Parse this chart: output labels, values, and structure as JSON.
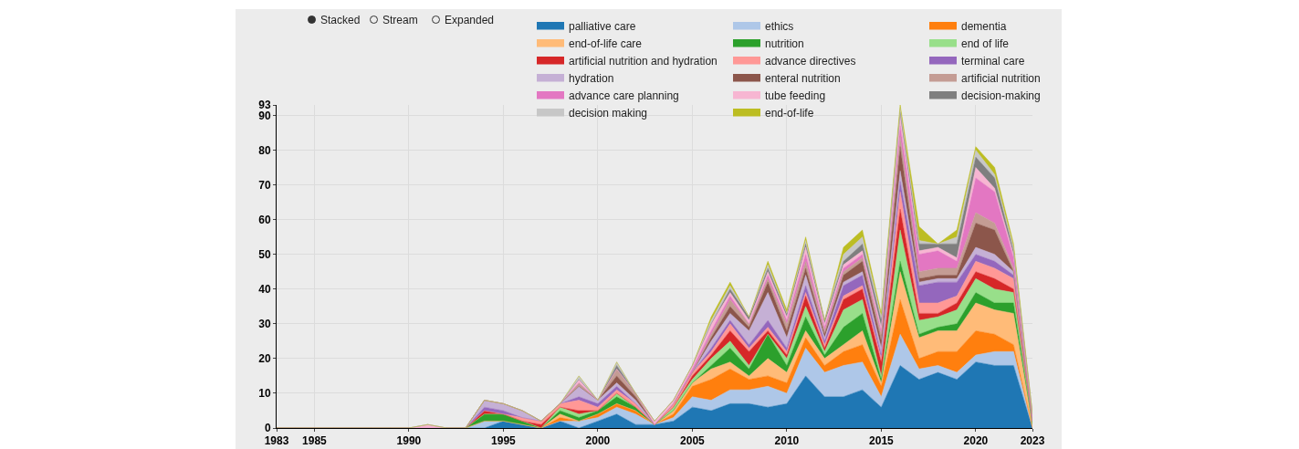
{
  "chart_data": {
    "type": "area",
    "stacked": true,
    "annotations": [
      "Stacked",
      "Stream",
      "Expanded"
    ],
    "x": [
      1983,
      1984,
      1985,
      1986,
      1987,
      1988,
      1989,
      1990,
      1991,
      1992,
      1993,
      1994,
      1995,
      1996,
      1997,
      1998,
      1999,
      2000,
      2001,
      2002,
      2003,
      2004,
      2005,
      2006,
      2007,
      2008,
      2009,
      2010,
      2011,
      2012,
      2013,
      2014,
      2015,
      2016,
      2017,
      2018,
      2019,
      2020,
      2021,
      2022,
      2023
    ],
    "xlim": [
      1983,
      2023
    ],
    "xticks": [
      1983,
      1985,
      1990,
      1995,
      2000,
      2005,
      2010,
      2015,
      2020,
      2023
    ],
    "ylim": [
      0,
      93
    ],
    "yticks": [
      0,
      10,
      20,
      30,
      40,
      50,
      60,
      70,
      80,
      90,
      93
    ],
    "grid": true,
    "legend": "top",
    "marker": "none",
    "series": [
      {
        "name": "palliative care",
        "color": "#1f77b4",
        "values": [
          0,
          0,
          0,
          0,
          0,
          0,
          0,
          0,
          0,
          0,
          0,
          0,
          2,
          1,
          0,
          2,
          0,
          2,
          4,
          1,
          1,
          2,
          6,
          5,
          7,
          7,
          6,
          7,
          15,
          9,
          9,
          11,
          6,
          18,
          14,
          16,
          14,
          19,
          18,
          18,
          0
        ]
      },
      {
        "name": "ethics",
        "color": "#aec7e8",
        "values": [
          0,
          0,
          0,
          0,
          0,
          0,
          0,
          0,
          0,
          0,
          0,
          2,
          0,
          0,
          0,
          0,
          2,
          1,
          2,
          3,
          0,
          1,
          3,
          3,
          4,
          4,
          6,
          3,
          8,
          7,
          9,
          8,
          3,
          9,
          3,
          2,
          2,
          2,
          4,
          4,
          0
        ]
      },
      {
        "name": "dementia",
        "color": "#ff7f0e",
        "values": [
          0,
          0,
          0,
          0,
          0,
          0,
          0,
          0,
          0,
          0,
          0,
          0,
          0,
          0,
          0,
          1,
          0,
          1,
          1,
          1,
          0,
          1,
          3,
          6,
          6,
          3,
          3,
          3,
          3,
          2,
          4,
          5,
          3,
          10,
          3,
          4,
          6,
          7,
          5,
          2,
          0
        ]
      },
      {
        "name": "end-of-life care",
        "color": "#ffbb78",
        "values": [
          0,
          0,
          0,
          0,
          0,
          0,
          0,
          0,
          0,
          0,
          0,
          0,
          0,
          0,
          0,
          1,
          0,
          0,
          0,
          0,
          0,
          1,
          1,
          3,
          2,
          1,
          5,
          3,
          2,
          2,
          2,
          4,
          1,
          8,
          6,
          6,
          6,
          8,
          7,
          9,
          1
        ]
      },
      {
        "name": "nutrition",
        "color": "#2ca02c",
        "values": [
          0,
          0,
          0,
          0,
          0,
          0,
          0,
          0,
          0,
          0,
          0,
          2,
          2,
          1,
          0,
          1,
          1,
          1,
          2,
          1,
          0,
          0,
          0,
          1,
          4,
          2,
          7,
          2,
          4,
          1,
          5,
          5,
          1,
          3,
          1,
          1,
          2,
          3,
          2,
          3,
          0
        ]
      },
      {
        "name": "end of life",
        "color": "#98df8a",
        "values": [
          0,
          0,
          0,
          0,
          0,
          0,
          0,
          0,
          0,
          0,
          0,
          0,
          0,
          0,
          0,
          1,
          1,
          0,
          1,
          0,
          0,
          1,
          1,
          2,
          2,
          1,
          0,
          2,
          3,
          1,
          5,
          4,
          1,
          9,
          4,
          3,
          4,
          4,
          4,
          3,
          1
        ]
      },
      {
        "name": "artificial nutrition and hydration",
        "color": "#d62728",
        "values": [
          0,
          0,
          0,
          0,
          0,
          0,
          0,
          0,
          0,
          0,
          0,
          1,
          0,
          0,
          1,
          0,
          1,
          0,
          0,
          0,
          0,
          0,
          1,
          1,
          3,
          4,
          1,
          1,
          3,
          1,
          3,
          3,
          4,
          6,
          2,
          1,
          2,
          2,
          3,
          1,
          0
        ]
      },
      {
        "name": "advance directives",
        "color": "#ff9896",
        "values": [
          0,
          0,
          0,
          0,
          0,
          0,
          0,
          0,
          0,
          0,
          0,
          0,
          0,
          1,
          1,
          1,
          3,
          1,
          1,
          1,
          0,
          1,
          1,
          1,
          2,
          1,
          1,
          1,
          1,
          1,
          1,
          1,
          1,
          5,
          3,
          3,
          2,
          3,
          3,
          3,
          0
        ]
      },
      {
        "name": "terminal care",
        "color": "#9467bd",
        "values": [
          0,
          0,
          0,
          0,
          0,
          0,
          0,
          0,
          0,
          0,
          0,
          1,
          1,
          0,
          0,
          0,
          1,
          1,
          1,
          0,
          0,
          0,
          0,
          1,
          1,
          1,
          2,
          1,
          2,
          1,
          3,
          3,
          1,
          3,
          5,
          6,
          4,
          2,
          2,
          1,
          0
        ]
      },
      {
        "name": "hydration",
        "color": "#c5b0d5",
        "values": [
          0,
          0,
          0,
          0,
          0,
          0,
          0,
          0,
          0,
          0,
          0,
          2,
          2,
          2,
          0,
          0,
          3,
          1,
          1,
          1,
          0,
          0,
          0,
          2,
          2,
          4,
          8,
          3,
          3,
          1,
          1,
          1,
          2,
          3,
          1,
          1,
          1,
          2,
          2,
          1,
          0
        ]
      },
      {
        "name": "enteral nutrition",
        "color": "#8c564b",
        "values": [
          0,
          0,
          0,
          0,
          0,
          0,
          0,
          0,
          0,
          0,
          0,
          0,
          0,
          0,
          0,
          0,
          0,
          0,
          2,
          1,
          0,
          0,
          0,
          1,
          2,
          1,
          3,
          2,
          2,
          1,
          2,
          3,
          2,
          7,
          1,
          1,
          1,
          7,
          7,
          0,
          0
        ]
      },
      {
        "name": "artificial nutrition",
        "color": "#c49c94",
        "values": [
          0,
          0,
          0,
          0,
          0,
          0,
          0,
          0,
          0,
          0,
          0,
          0,
          0,
          0,
          0,
          0,
          1,
          0,
          2,
          1,
          0,
          0,
          0,
          1,
          2,
          1,
          1,
          2,
          2,
          1,
          1,
          1,
          2,
          3,
          2,
          2,
          2,
          3,
          2,
          1,
          0
        ]
      },
      {
        "name": "advance care planning",
        "color": "#e377c2",
        "values": [
          0,
          0,
          0,
          0,
          0,
          0,
          0,
          0,
          0,
          0,
          0,
          0,
          0,
          0,
          0,
          0,
          0,
          0,
          0,
          0,
          0,
          0,
          1,
          1,
          1,
          0,
          1,
          1,
          2,
          1,
          1,
          1,
          1,
          3,
          5,
          5,
          2,
          10,
          9,
          3,
          1
        ]
      },
      {
        "name": "tube feeding",
        "color": "#f7b6d2",
        "values": [
          0,
          0,
          0,
          0,
          0,
          0,
          0,
          0,
          1,
          0,
          0,
          0,
          0,
          0,
          0,
          0,
          1,
          0,
          0,
          0,
          1,
          1,
          1,
          2,
          1,
          1,
          1,
          1,
          2,
          1,
          1,
          1,
          1,
          3,
          1,
          1,
          1,
          3,
          1,
          1,
          1
        ]
      },
      {
        "name": "decision-making",
        "color": "#7f7f7f",
        "values": [
          0,
          0,
          0,
          0,
          0,
          0,
          0,
          0,
          0,
          0,
          0,
          0,
          0,
          0,
          0,
          0,
          0,
          0,
          1,
          0,
          0,
          0,
          0,
          0,
          1,
          1,
          1,
          1,
          1,
          1,
          1,
          2,
          2,
          1,
          2,
          1,
          4,
          3,
          3,
          1,
          0
        ]
      },
      {
        "name": "decision making",
        "color": "#c7c7c7",
        "values": [
          0,
          0,
          0,
          0,
          0,
          0,
          0,
          0,
          0,
          0,
          0,
          0,
          0,
          0,
          0,
          0,
          1,
          0,
          1,
          0,
          0,
          0,
          0,
          1,
          1,
          0,
          1,
          0,
          1,
          0,
          2,
          2,
          1,
          1,
          1,
          0,
          2,
          2,
          1,
          1,
          0
        ]
      },
      {
        "name": "end-of-life",
        "color": "#bcbd22",
        "values": [
          0,
          0,
          0,
          0,
          0,
          0,
          0,
          0,
          0,
          0,
          0,
          0,
          0,
          0,
          0,
          0,
          0,
          0,
          0,
          0,
          0,
          0,
          0,
          1,
          1,
          0,
          1,
          1,
          1,
          0,
          2,
          2,
          1,
          1,
          4,
          0,
          2,
          1,
          2,
          1,
          0
        ]
      }
    ]
  }
}
